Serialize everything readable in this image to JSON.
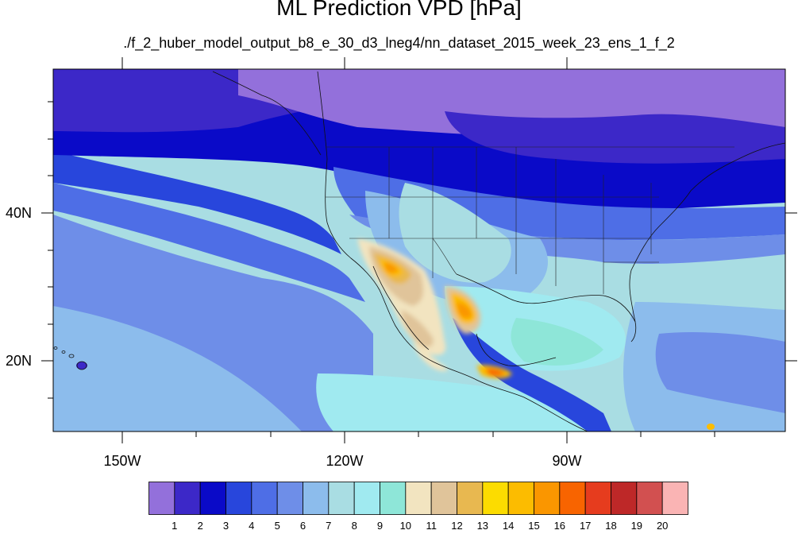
{
  "title": "ML Prediction VPD [hPa]",
  "subtitle": "./f_2_huber_model_output_b8_e_30_d3_lneg4/nn_dataset_2015_week_23_ens_1_f_2",
  "map": {
    "lon_range": [
      -165,
      -65
    ],
    "lat_range": [
      10,
      59
    ],
    "lon_ticks": [
      "150W",
      "120W",
      "90W"
    ],
    "lat_ticks": [
      "40N",
      "20N"
    ],
    "background_color": "#a9dde3"
  },
  "colorbar": {
    "labels": [
      "1",
      "2",
      "3",
      "4",
      "5",
      "6",
      "7",
      "8",
      "9",
      "10",
      "11",
      "12",
      "13",
      "14",
      "15",
      "16",
      "17",
      "18",
      "19",
      "20"
    ],
    "colors": [
      "#9370db",
      "#3c28c8",
      "#0a0ac8",
      "#2846dc",
      "#4e6ee6",
      "#6e8ee8",
      "#8cbcec",
      "#a9dde3",
      "#a0eaf0",
      "#8ee6d8",
      "#f2e4c0",
      "#e0c49a",
      "#e8b850",
      "#fcdc00",
      "#fcbc00",
      "#fa9600",
      "#f86400",
      "#e63c1e",
      "#be2828",
      "#d25050",
      "#fab4b4"
    ]
  }
}
